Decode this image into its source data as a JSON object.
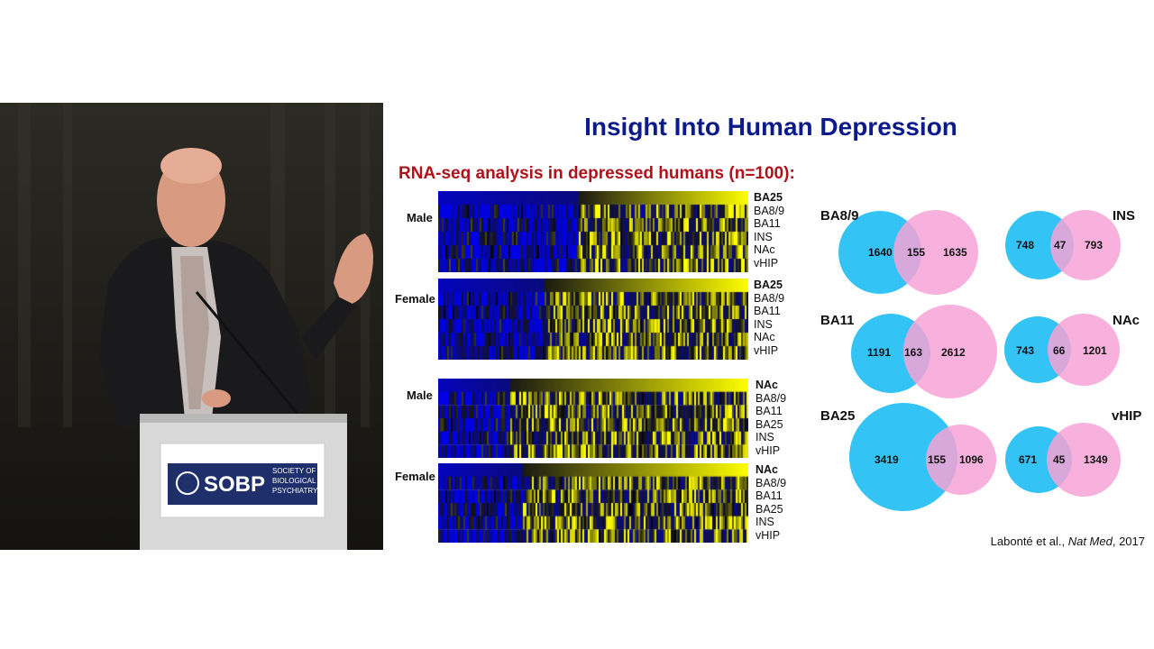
{
  "title": "Insight Into Human Depression",
  "subtitle": "RNA-seq analysis in depressed humans (n=100):",
  "logo": {
    "name": "SOBP",
    "line1": "SOCIETY OF",
    "line2": "BIOLOGICAL",
    "line3": "PSYCHIATRY"
  },
  "heatmaps": [
    {
      "group": "Male",
      "rows": [
        "BA25",
        "BA8/9",
        "BA11",
        "INS",
        "NAc",
        "vHIP"
      ],
      "bold_row": "BA25"
    },
    {
      "group": "Female",
      "rows": [
        "BA25",
        "BA8/9",
        "BA11",
        "INS",
        "NAc",
        "vHIP"
      ],
      "bold_row": "BA25"
    },
    {
      "group": "Male",
      "rows": [
        "NAc",
        "BA8/9",
        "BA11",
        "BA25",
        "INS",
        "vHIP"
      ],
      "bold_row": "NAc"
    },
    {
      "group": "Female",
      "rows": [
        "NAc",
        "BA8/9",
        "BA11",
        "BA25",
        "INS",
        "vHIP"
      ],
      "bold_row": "NAc"
    }
  ],
  "venns": [
    {
      "region": "BA8/9",
      "left": "1640",
      "overlap": "155",
      "right": "1635"
    },
    {
      "region": "INS",
      "left": "748",
      "overlap": "47",
      "right": "793"
    },
    {
      "region": "BA11",
      "left": "1191",
      "overlap": "163",
      "right": "2612"
    },
    {
      "region": "NAc",
      "left": "743",
      "overlap": "66",
      "right": "1201"
    },
    {
      "region": "BA25",
      "left": "3419",
      "overlap": "155",
      "right": "1096"
    },
    {
      "region": "vHIP",
      "left": "671",
      "overlap": "45",
      "right": "1349"
    }
  ],
  "citation": {
    "authors": "Labonté et al.,",
    "journal": "Nat Med",
    "year": ", 2017"
  },
  "colors": {
    "title": "#0c1a8c",
    "subtitle": "#b0121b",
    "venn_left": "#33c3f5",
    "venn_right": "#f6a3d6",
    "heat_low": "#0000e6",
    "heat_high": "#ffff00"
  }
}
